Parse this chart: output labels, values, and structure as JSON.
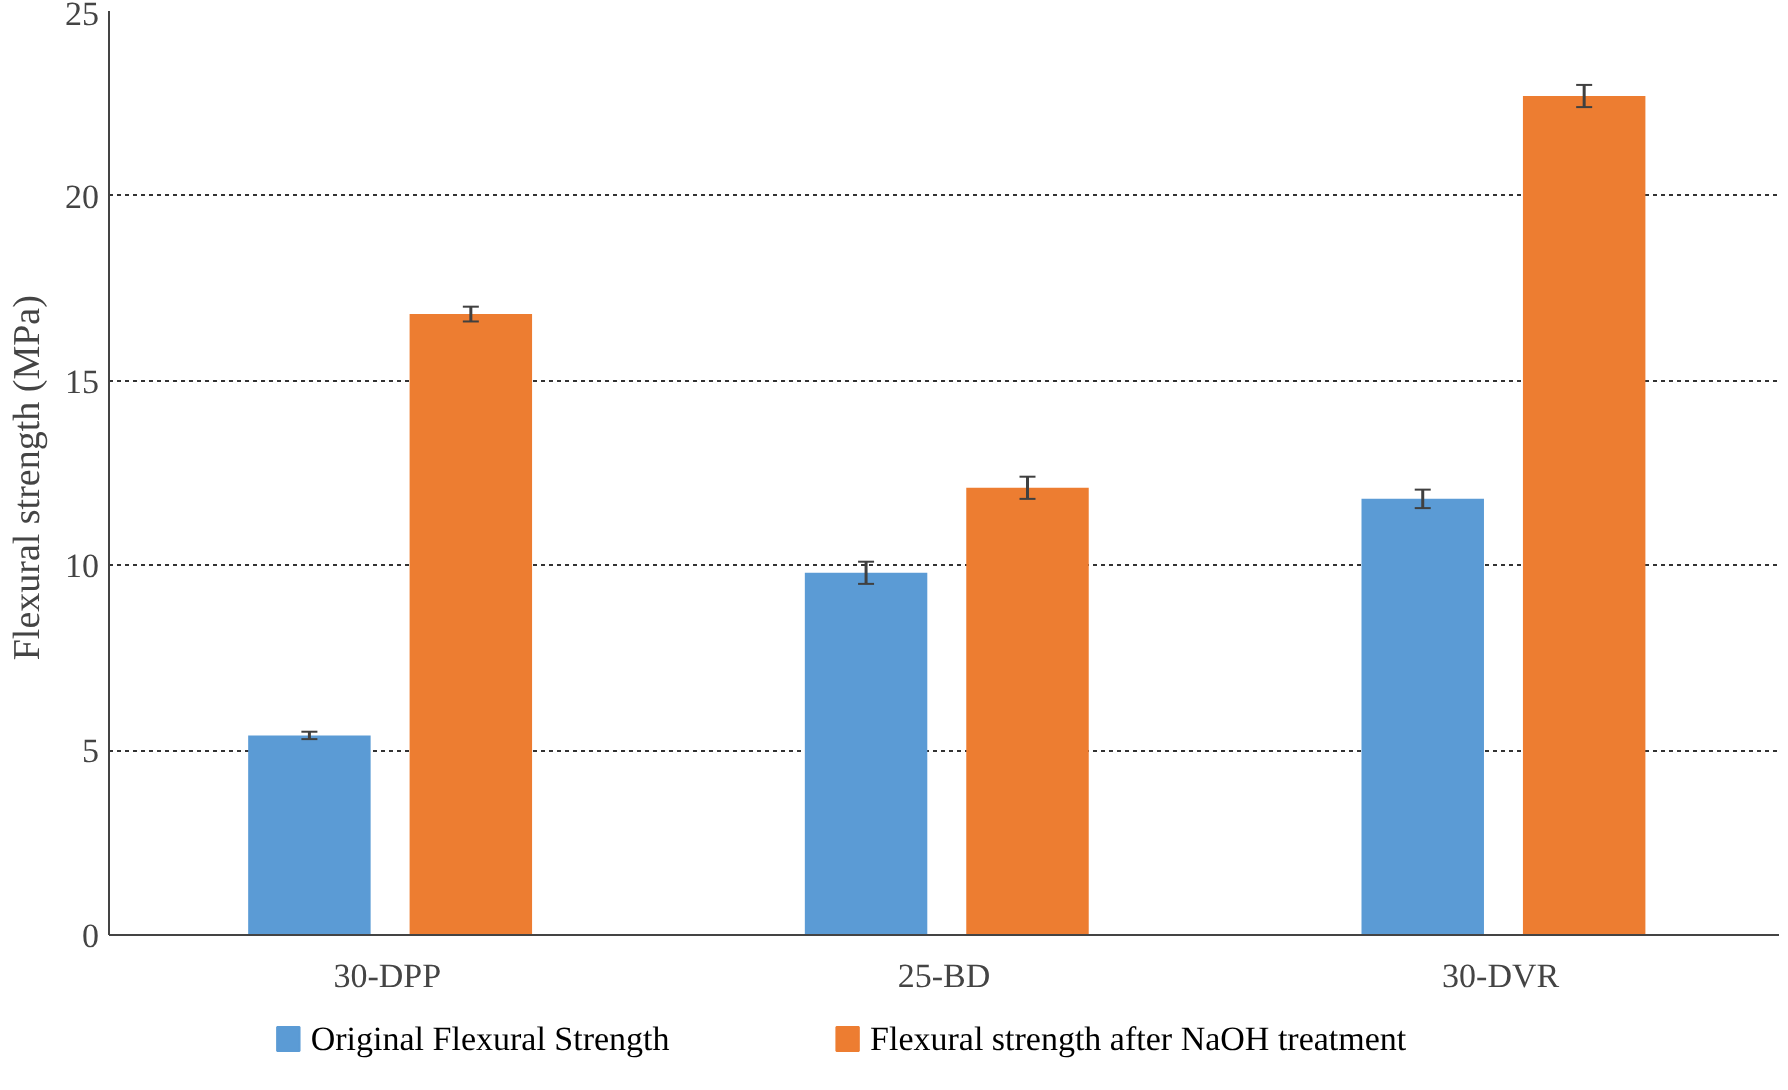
{
  "chart_data": {
    "type": "bar",
    "ylabel": "Flexural  strength (MPa)",
    "categories": [
      "30-DPP",
      "25-BD",
      "30-DVR"
    ],
    "series": [
      {
        "name": "Original Flexural  Strength",
        "color": "#5b9bd5",
        "values": [
          5.4,
          9.8,
          11.8
        ],
        "errors": [
          0.1,
          0.3,
          0.25
        ]
      },
      {
        "name": "Flexural strength after NaOH treatment",
        "color": "#ed7d31",
        "values": [
          16.8,
          12.1,
          22.7
        ],
        "errors": [
          0.2,
          0.3,
          0.3
        ]
      }
    ],
    "ylim": [
      0,
      25
    ],
    "yticks": [
      0,
      5,
      10,
      15,
      20,
      25
    ],
    "grid": "y",
    "legend": "bottom"
  }
}
